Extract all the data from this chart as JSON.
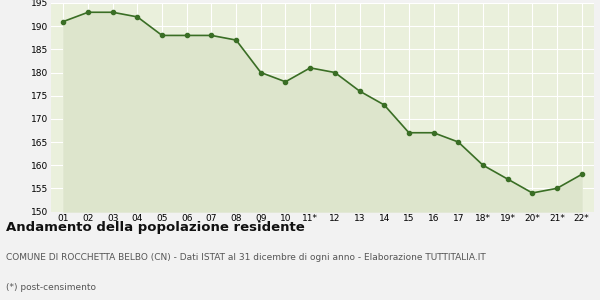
{
  "x_labels": [
    "01",
    "02",
    "03",
    "04",
    "05",
    "06",
    "07",
    "08",
    "09",
    "10",
    "11*",
    "12",
    "13",
    "14",
    "15",
    "16",
    "17",
    "18*",
    "19*",
    "20*",
    "21*",
    "22*"
  ],
  "y_values": [
    191,
    193,
    193,
    192,
    188,
    188,
    188,
    187,
    180,
    178,
    181,
    180,
    176,
    173,
    167,
    167,
    165,
    160,
    157,
    154,
    155,
    158
  ],
  "ylim": [
    150,
    195
  ],
  "yticks": [
    150,
    155,
    160,
    165,
    170,
    175,
    180,
    185,
    190,
    195
  ],
  "line_color": "#3a6e25",
  "fill_color": "#dde5cc",
  "marker": "o",
  "marker_size": 3.0,
  "line_width": 1.2,
  "bg_color": "#f2f2f2",
  "plot_bg_color": "#eaf0dc",
  "grid_color": "#ffffff",
  "title": "Andamento della popolazione residente",
  "subtitle": "COMUNE DI ROCCHETTA BELBO (CN) - Dati ISTAT al 31 dicembre di ogni anno - Elaborazione TUTTITALIA.IT",
  "footnote": "(*) post-censimento",
  "title_fontsize": 9.5,
  "subtitle_fontsize": 6.5,
  "footnote_fontsize": 6.5,
  "tick_fontsize": 6.5,
  "text_color_title": "#111111",
  "text_color_sub": "#555555"
}
